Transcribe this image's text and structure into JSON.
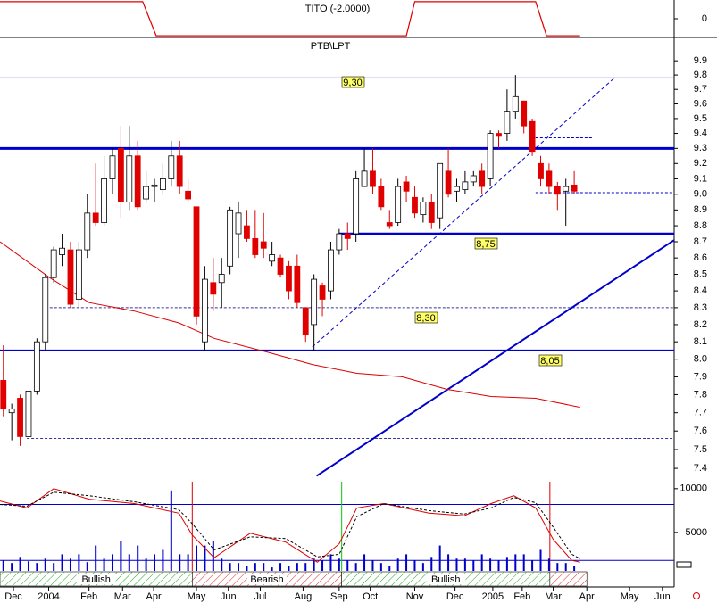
{
  "chart_data": [
    {
      "type": "step-line",
      "title": "TITO (-2.0000)",
      "xlim": [
        -0.4,
        79.9
      ],
      "ylim": [
        -2.2,
        2.2
      ],
      "yticks": [
        0
      ],
      "color": "#dd0000",
      "x": [
        -0.4,
        16.6,
        18.2,
        48,
        49,
        63.4,
        64.7,
        68.7
      ],
      "values": [
        2,
        2,
        -2,
        -2,
        2,
        2,
        -2,
        -2
      ]
    },
    {
      "type": "candlestick",
      "title": "PTB\\LPT",
      "log_scale": true,
      "xlim": [
        -0.4,
        79.9
      ],
      "ylim": [
        7.33,
        10.06
      ],
      "yticks": [
        9.9,
        9.8,
        9.7,
        9.6,
        9.5,
        9.4,
        9.3,
        9.2,
        9.1,
        {
          "value": 9,
          "label": "9.0"
        },
        8.9,
        8.8,
        8.7,
        8.6,
        8.5,
        8.4,
        8.3,
        8.2,
        8.1,
        {
          "value": 8,
          "label": "8.0"
        },
        7.9,
        7.8,
        7.7,
        7.6,
        7.5,
        7.4
      ],
      "up_color": "#ffffff",
      "down_color": "#e00000",
      "x": [
        0,
        1,
        2,
        3,
        4,
        5,
        6,
        7,
        8,
        9,
        10,
        11,
        12,
        13,
        14,
        15,
        16,
        17,
        18,
        19,
        20,
        21,
        22,
        23,
        24,
        25,
        26,
        27,
        28,
        29,
        30,
        31,
        32,
        33,
        34,
        35,
        36,
        37,
        38,
        39,
        40,
        41,
        42,
        43,
        44,
        45,
        46,
        47,
        48,
        49,
        50,
        51,
        52,
        53,
        54,
        55,
        56,
        57,
        58,
        59,
        60,
        61,
        62,
        63,
        64,
        65,
        66,
        67,
        68
      ],
      "open": [
        7.88,
        7.7,
        7.78,
        7.57,
        7.82,
        8.1,
        8.48,
        8.62,
        8.65,
        8.35,
        8.65,
        8.88,
        8.82,
        9.1,
        9.3,
        8.95,
        9.25,
        8.97,
        9.05,
        9.03,
        9.1,
        9.25,
        9.02,
        8.92,
        8.1,
        8.45,
        8.45,
        8.55,
        8.75,
        8.8,
        8.72,
        8.7,
        8.58,
        8.6,
        8.55,
        8.55,
        8.3,
        8.2,
        8.43,
        8.4,
        8.65,
        8.75,
        8.75,
        9.05,
        9.15,
        9.05,
        8.82,
        8.82,
        9.08,
        8.98,
        8.87,
        8.95,
        8.85,
        9.15,
        9.02,
        9.03,
        9.08,
        9.15,
        9.1,
        9.4,
        9.4,
        9.55,
        9.62,
        9.48,
        9.2,
        9.15,
        9.05,
        9.02,
        9.06
      ],
      "high": [
        8.08,
        7.75,
        7.8,
        7.82,
        8.12,
        8.5,
        8.67,
        8.75,
        8.7,
        8.7,
        9.0,
        9.2,
        9.25,
        9.3,
        9.45,
        9.45,
        9.35,
        9.15,
        9.1,
        9.2,
        9.35,
        9.35,
        9.1,
        8.92,
        8.55,
        8.6,
        8.6,
        8.92,
        8.95,
        8.9,
        8.9,
        8.88,
        8.7,
        8.62,
        8.58,
        8.62,
        8.3,
        8.5,
        8.45,
        8.7,
        8.78,
        8.82,
        9.15,
        9.3,
        9.3,
        9.1,
        8.9,
        9.1,
        9.12,
        9.05,
        8.98,
        9.0,
        9.2,
        9.3,
        9.1,
        9.15,
        9.15,
        9.2,
        9.42,
        9.42,
        9.7,
        9.8,
        9.62,
        9.5,
        9.25,
        9.2,
        9.08,
        9.1,
        9.15
      ],
      "low": [
        7.68,
        7.55,
        7.52,
        7.57,
        7.8,
        8.05,
        8.45,
        8.55,
        8.3,
        8.3,
        8.6,
        8.8,
        8.8,
        9.0,
        8.85,
        8.9,
        8.9,
        8.95,
        8.95,
        9.0,
        9.05,
        9.0,
        8.95,
        8.2,
        8.05,
        8.28,
        8.3,
        8.5,
        8.6,
        8.7,
        8.6,
        8.6,
        8.55,
        8.48,
        8.35,
        8.3,
        8.1,
        8.05,
        8.25,
        8.35,
        8.62,
        8.65,
        8.7,
        9.05,
        9.0,
        8.9,
        8.78,
        8.8,
        8.95,
        8.85,
        8.82,
        8.78,
        8.78,
        8.98,
        8.95,
        9.0,
        9.05,
        9.0,
        9.05,
        9.3,
        9.35,
        9.5,
        9.4,
        9.25,
        9.05,
        9.0,
        8.9,
        8.8,
        9.0
      ],
      "close": [
        7.72,
        7.72,
        7.57,
        7.82,
        8.1,
        8.48,
        8.65,
        8.66,
        8.32,
        8.65,
        8.88,
        8.82,
        9.1,
        9.25,
        8.95,
        9.25,
        8.92,
        9.05,
        9.06,
        9.1,
        9.25,
        9.05,
        8.97,
        8.25,
        8.47,
        8.38,
        8.5,
        8.9,
        8.88,
        8.72,
        8.62,
        8.66,
        8.62,
        8.5,
        8.4,
        8.33,
        8.14,
        8.47,
        8.35,
        8.65,
        8.75,
        8.72,
        9.1,
        9.15,
        9.05,
        8.92,
        8.8,
        9.05,
        9.02,
        8.88,
        8.95,
        8.82,
        9.2,
        9.0,
        9.05,
        9.08,
        9.12,
        9.05,
        9.4,
        9.38,
        9.55,
        9.65,
        9.45,
        9.28,
        9.1,
        9.05,
        9.0,
        9.05,
        9.02
      ],
      "lines": [
        {
          "color": "#dd0000",
          "x": [
            -0.4,
            5.5,
            10.2,
            15.6,
            20.9,
            25.1,
            31.5,
            36.8,
            42.1,
            47.5,
            52.8,
            58.1,
            63.4,
            68.7
          ],
          "values": [
            8.7,
            8.48,
            8.33,
            8.28,
            8.21,
            8.12,
            8.04,
            7.97,
            7.92,
            7.9,
            7.83,
            7.79,
            7.78,
            7.73
          ]
        }
      ],
      "levels": [
        {
          "value": 9.78,
          "color": "#0000cc",
          "width": 1,
          "dashed": false,
          "from": -0.4,
          "to": 79.9
        },
        {
          "value": 9.3,
          "color": "#0000cc",
          "width": 3,
          "dashed": false,
          "from": -0.4,
          "to": 79.9
        },
        {
          "value": 8.75,
          "color": "#0000cc",
          "width": 2.5,
          "dashed": false,
          "from": 40,
          "to": 79.9
        },
        {
          "value": 9.01,
          "color": "#0000cc",
          "width": 1,
          "dashed": true,
          "from": 63.4,
          "to": 79.9
        },
        {
          "value": 8.3,
          "color": "#333399",
          "width": 1,
          "dashed": true,
          "from": 5,
          "to": 79.9
        },
        {
          "value": 8.05,
          "color": "#0000cc",
          "width": 2,
          "dashed": false,
          "from": -0.4,
          "to": 79.9
        },
        {
          "value": 7.56,
          "color": "#333399",
          "width": 1,
          "dashed": true,
          "from": 2.8,
          "to": 79.9
        },
        {
          "value": 9.37,
          "color": "#0000cc",
          "width": 1,
          "dashed": true,
          "from": 63.4,
          "to": 70.3
        }
      ],
      "trendlines": [
        {
          "color": "#0000cc",
          "width": 1,
          "dashed": true,
          "x": [
            36.8,
            72.8
          ],
          "values": [
            8.07,
            9.78
          ]
        },
        {
          "color": "#0000cc",
          "width": 2,
          "dashed": false,
          "x": [
            37.3,
            79.9
          ],
          "values": [
            7.36,
            8.71
          ]
        }
      ],
      "annotations": [
        "9,30",
        "8,75",
        "8,30",
        "8,05"
      ]
    },
    {
      "type": "bar",
      "color": "#0000cc",
      "xlim": [
        -0.4,
        79.9
      ],
      "ylim": [
        600,
        10800
      ],
      "yticks": [
        10000,
        5000
      ],
      "x": [
        0,
        1,
        2,
        3,
        4,
        5,
        6,
        7,
        8,
        9,
        10,
        11,
        12,
        13,
        14,
        15,
        16,
        17,
        18,
        19,
        20,
        21,
        22,
        23,
        24,
        25,
        26,
        27,
        28,
        29,
        30,
        31,
        32,
        33,
        34,
        35,
        36,
        37,
        38,
        39,
        40,
        41,
        42,
        43,
        44,
        45,
        46,
        47,
        48,
        49,
        50,
        51,
        52,
        53,
        54,
        55,
        56,
        57,
        58,
        59,
        60,
        61,
        62,
        63,
        64,
        65,
        66,
        67,
        68
      ],
      "values": [
        1800,
        1500,
        2200,
        1700,
        1500,
        2000,
        1500,
        2500,
        2000,
        2500,
        1600,
        3500,
        2000,
        2500,
        4000,
        2500,
        3500,
        2000,
        2500,
        3000,
        9800,
        2500,
        2500,
        3500,
        3500,
        4000,
        2000,
        1500,
        1500,
        1200,
        1500,
        1500,
        1000,
        1500,
        1200,
        1500,
        1500,
        2000,
        1800,
        2500,
        2000,
        1800,
        1500,
        2500,
        1800,
        1500,
        1200,
        2000,
        2500,
        1800,
        1500,
        2200,
        3500,
        2500,
        2000,
        2000,
        1800,
        2500,
        2000,
        1800,
        2200,
        2500,
        2500,
        1800,
        3000,
        2000,
        1500,
        1500,
        1200
      ],
      "lines": [
        {
          "color": "#dd0000",
          "dashed": false,
          "x": [
            -0.4,
            2.8,
            6,
            10.2,
            15.6,
            20.9,
            22.5,
            25.1,
            29.4,
            33.6,
            37.4,
            40,
            42.1,
            45.3,
            50.7,
            54.9,
            58.1,
            60.8,
            63.4,
            65.5,
            67.7,
            68.7
          ],
          "values": [
            8600,
            7800,
            10000,
            8800,
            8300,
            7200,
            4700,
            2100,
            4900,
            3900,
            1600,
            3700,
            7800,
            8300,
            7200,
            6900,
            8300,
            9200,
            7800,
            4200,
            1800,
            1600
          ]
        },
        {
          "color": "#000000",
          "dashed": true,
          "x": [
            -0.4,
            2.8,
            6,
            10.2,
            15.6,
            20.9,
            22.5,
            25.1,
            29.4,
            33.6,
            37.4,
            40,
            42.1,
            45.3,
            50.7,
            54.9,
            58.1,
            60.8,
            63.4,
            65.5,
            67.7,
            68.7
          ],
          "values": [
            8200,
            8000,
            9600,
            9200,
            8500,
            7600,
            6000,
            3000,
            4500,
            4300,
            2200,
            2500,
            6800,
            8300,
            7500,
            7100,
            7800,
            9000,
            8400,
            5600,
            2500,
            2000
          ]
        }
      ],
      "hlines": [
        8200,
        1800
      ],
      "vlines": [
        {
          "x": 22.5,
          "color": "#dd0000"
        },
        {
          "x": 40.3,
          "color": "#00cc00"
        },
        {
          "x": 65.1,
          "color": "#dd0000"
        }
      ],
      "regions": [
        {
          "label": "Bullish",
          "from": -0.4,
          "to": 22.5,
          "color": "#22aa22"
        },
        {
          "label": "Bearish",
          "from": 22.5,
          "to": 40.3,
          "color": "#dd2222"
        },
        {
          "label": "Bullish",
          "from": 40.3,
          "to": 65.1,
          "color": "#22aa22"
        },
        {
          "from": 65.1,
          "to": 69.5,
          "color": "#dd2222"
        }
      ],
      "xticks": [
        {
          "value": 1.2,
          "label": "Dec"
        },
        {
          "value": 5.4,
          "label": "2004"
        },
        {
          "value": 10.2,
          "label": "Feb"
        },
        {
          "value": 14.2,
          "label": "Mar"
        },
        {
          "value": 17.9,
          "label": "Apr"
        },
        {
          "value": 23,
          "label": "May"
        },
        {
          "value": 26.8,
          "label": "Jun"
        },
        {
          "value": 30.6,
          "label": "Jul"
        },
        {
          "value": 35.7,
          "label": "Aug"
        },
        {
          "value": 40,
          "label": "Sep"
        },
        {
          "value": 43.7,
          "label": "Oct"
        },
        {
          "value": 49,
          "label": "Nov"
        },
        {
          "value": 53.8,
          "label": "Dec"
        },
        {
          "value": 58.3,
          "label": "2005"
        },
        {
          "value": 61.8,
          "label": "Feb"
        },
        {
          "value": 65.5,
          "label": "Mar"
        },
        {
          "value": 69.5,
          "label": "Apr"
        },
        {
          "value": 74.6,
          "label": "May"
        },
        {
          "value": 78.5,
          "label": "Jun"
        }
      ]
    }
  ]
}
